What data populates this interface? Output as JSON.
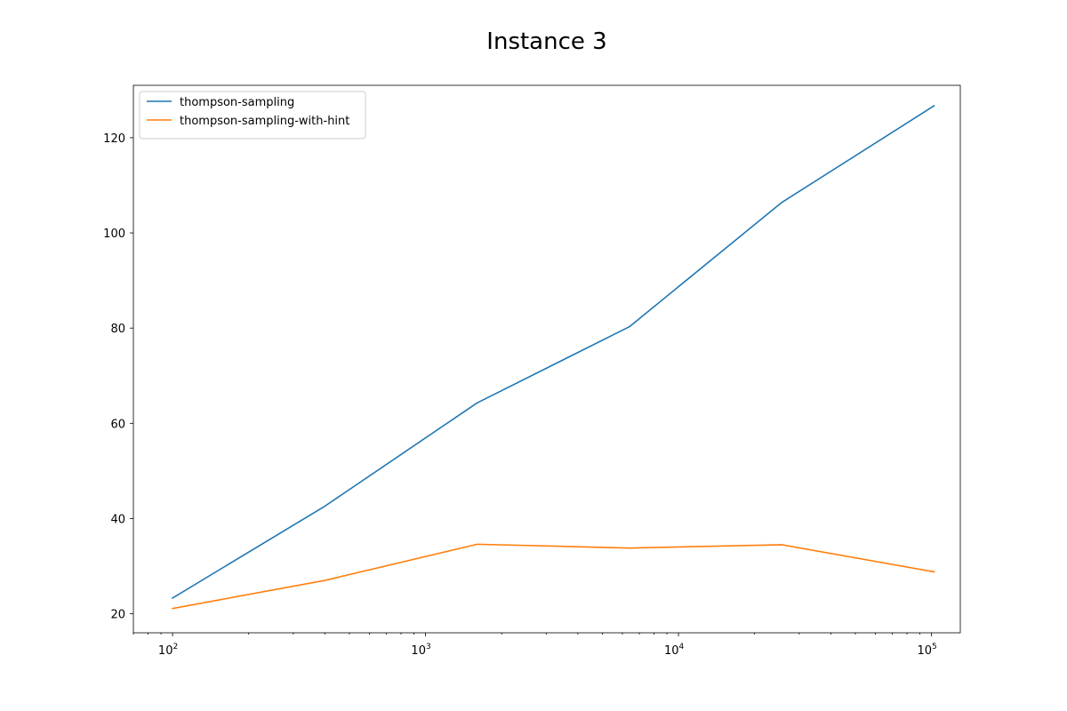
{
  "chart_data": {
    "type": "line",
    "title": "Instance 3",
    "xlabel": "",
    "ylabel": "",
    "xscale": "log",
    "xlim": [
      70,
      130000
    ],
    "ylim": [
      16,
      131
    ],
    "grid": false,
    "legend_position": "top-left",
    "x": [
      100,
      400,
      1600,
      6400,
      25600,
      102400
    ],
    "x_ticks": [
      {
        "value": 100,
        "base": "10",
        "exp": "2"
      },
      {
        "value": 1000,
        "base": "10",
        "exp": "3"
      },
      {
        "value": 10000,
        "base": "10",
        "exp": "4"
      },
      {
        "value": 100000,
        "base": "10",
        "exp": "5"
      }
    ],
    "y_ticks": [
      20,
      40,
      60,
      80,
      100,
      120
    ],
    "series": [
      {
        "name": "thompson-sampling",
        "color": "#1f77b4",
        "values": [
          23.3,
          42.6,
          64.3,
          80.3,
          106.4,
          126.7
        ]
      },
      {
        "name": "thompson-sampling-with-hint",
        "color": "#ff7f0e",
        "values": [
          21.1,
          27.0,
          34.6,
          33.8,
          34.5,
          28.8
        ]
      }
    ]
  }
}
